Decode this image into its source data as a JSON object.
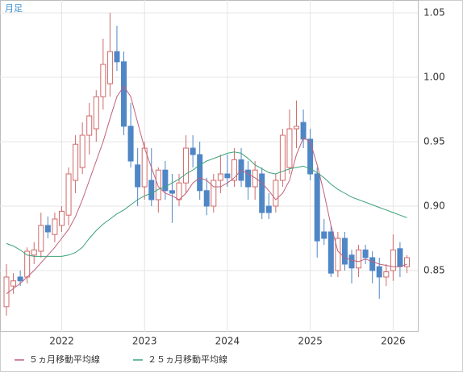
{
  "chart_data": {
    "type": "candlestick",
    "period_label": "月足",
    "categories": [
      null,
      null,
      null,
      null,
      null,
      null,
      null,
      null,
      "2022",
      null,
      null,
      null,
      null,
      null,
      null,
      null,
      null,
      null,
      null,
      null,
      "2023",
      null,
      null,
      null,
      null,
      null,
      null,
      null,
      null,
      null,
      null,
      null,
      "2024",
      null,
      null,
      null,
      null,
      null,
      null,
      null,
      null,
      null,
      null,
      null,
      "2025",
      null,
      null,
      null,
      null,
      null,
      null,
      null,
      null,
      null,
      null,
      null,
      "2026",
      null,
      null
    ],
    "open": [
      0.822,
      0.838,
      0.845,
      0.845,
      0.862,
      0.865,
      0.885,
      0.878,
      0.885,
      0.893,
      0.92,
      0.93,
      0.955,
      0.96,
      0.985,
      0.995,
      1.02,
      1.012,
      0.962,
      0.932,
      0.915,
      0.92,
      0.905,
      0.928,
      0.912,
      0.905,
      0.918,
      0.945,
      0.94,
      0.912,
      0.9,
      0.92,
      0.925,
      0.92,
      0.936,
      0.928,
      0.915,
      0.925,
      0.9,
      0.9,
      0.92,
      0.93,
      0.96,
      0.965,
      0.952,
      0.925,
      0.88,
      0.88,
      0.85,
      0.875,
      0.862,
      0.852,
      0.866,
      0.86,
      0.853,
      0.845,
      0.85,
      0.867,
      0.853
    ],
    "high": [
      0.855,
      0.848,
      0.85,
      0.868,
      0.872,
      0.895,
      0.892,
      0.895,
      0.9,
      0.93,
      0.955,
      0.965,
      0.98,
      0.99,
      1.03,
      1.05,
      1.04,
      1.02,
      0.98,
      0.945,
      0.95,
      0.945,
      0.93,
      0.935,
      0.925,
      0.925,
      0.955,
      0.955,
      0.95,
      0.922,
      0.925,
      0.94,
      0.94,
      0.945,
      0.945,
      0.935,
      0.935,
      0.93,
      0.91,
      0.925,
      0.96,
      0.975,
      0.982,
      0.975,
      0.96,
      0.93,
      0.89,
      0.885,
      0.88,
      0.88,
      0.866,
      0.87,
      0.87,
      0.865,
      0.86,
      0.855,
      0.878,
      0.872,
      0.862
    ],
    "low": [
      0.815,
      0.832,
      0.838,
      0.84,
      0.855,
      0.86,
      0.875,
      0.872,
      0.88,
      0.885,
      0.91,
      0.925,
      0.94,
      0.95,
      0.975,
      0.985,
      1.005,
      0.955,
      0.93,
      0.9,
      0.905,
      0.9,
      0.895,
      0.905,
      0.887,
      0.9,
      0.91,
      0.93,
      0.905,
      0.893,
      0.895,
      0.91,
      0.915,
      0.915,
      0.915,
      0.905,
      0.905,
      0.89,
      0.89,
      0.895,
      0.915,
      0.925,
      0.945,
      0.945,
      0.92,
      0.86,
      0.87,
      0.845,
      0.845,
      0.85,
      0.84,
      0.845,
      0.855,
      0.84,
      0.828,
      0.838,
      0.842,
      0.845,
      0.848
    ],
    "close": [
      0.845,
      0.842,
      0.842,
      0.865,
      0.866,
      0.885,
      0.88,
      0.89,
      0.896,
      0.925,
      0.948,
      0.955,
      0.97,
      0.985,
      1.01,
      1.02,
      1.012,
      0.962,
      0.935,
      0.915,
      0.945,
      0.905,
      0.928,
      0.912,
      0.91,
      0.918,
      0.945,
      0.94,
      0.912,
      0.9,
      0.92,
      0.925,
      0.922,
      0.936,
      0.92,
      0.915,
      0.928,
      0.895,
      0.895,
      0.92,
      0.955,
      0.96,
      0.962,
      0.952,
      0.925,
      0.873,
      0.875,
      0.848,
      0.875,
      0.855,
      0.852,
      0.866,
      0.86,
      0.85,
      0.845,
      0.849,
      0.866,
      0.853,
      0.86
    ],
    "up_color": "#d06a6a",
    "down_color": "#4f86c6",
    "series": [
      {
        "name": "５ヵ月移動平均線",
        "color": "#c0607a",
        "values": [
          0.832,
          0.836,
          0.84,
          0.845,
          0.85,
          0.856,
          0.862,
          0.868,
          0.875,
          0.882,
          0.892,
          0.905,
          0.92,
          0.935,
          0.95,
          0.968,
          0.985,
          0.993,
          0.985,
          0.965,
          0.945,
          0.93,
          0.915,
          0.91,
          0.908,
          0.905,
          0.91,
          0.918,
          0.922,
          0.92,
          0.915,
          0.915,
          0.918,
          0.922,
          0.928,
          0.925,
          0.922,
          0.918,
          0.912,
          0.905,
          0.91,
          0.92,
          0.94,
          0.953,
          0.95,
          0.932,
          0.91,
          0.885,
          0.865,
          0.86,
          0.858,
          0.857,
          0.859,
          0.857,
          0.855,
          0.854,
          0.853,
          0.853,
          0.855
        ]
      },
      {
        "name": "２５ヵ月移動平均線",
        "color": "#3aa278",
        "values": [
          0.871,
          0.869,
          0.866,
          0.862,
          0.861,
          0.861,
          0.861,
          0.861,
          0.861,
          0.862,
          0.864,
          0.868,
          0.875,
          0.881,
          0.886,
          0.89,
          0.894,
          0.897,
          0.901,
          0.905,
          0.908,
          0.91,
          0.913,
          0.915,
          0.918,
          0.921,
          0.925,
          0.928,
          0.932,
          0.935,
          0.937,
          0.939,
          0.941,
          0.942,
          0.941,
          0.937,
          0.932,
          0.929,
          0.926,
          0.925,
          0.927,
          0.929,
          0.93,
          0.931,
          0.929,
          0.926,
          0.922,
          0.917,
          0.913,
          0.91,
          0.907,
          0.905,
          0.903,
          0.901,
          0.899,
          0.897,
          0.895,
          0.893,
          0.891
        ]
      }
    ],
    "ylim": [
      0.8025,
      1.06
    ],
    "yticks": [
      0.85,
      {
        "value": 0.9,
        "label": "0.90"
      },
      0.95,
      {
        "value": 1.0,
        "label": "1.00"
      },
      1.05
    ],
    "grid": true
  }
}
